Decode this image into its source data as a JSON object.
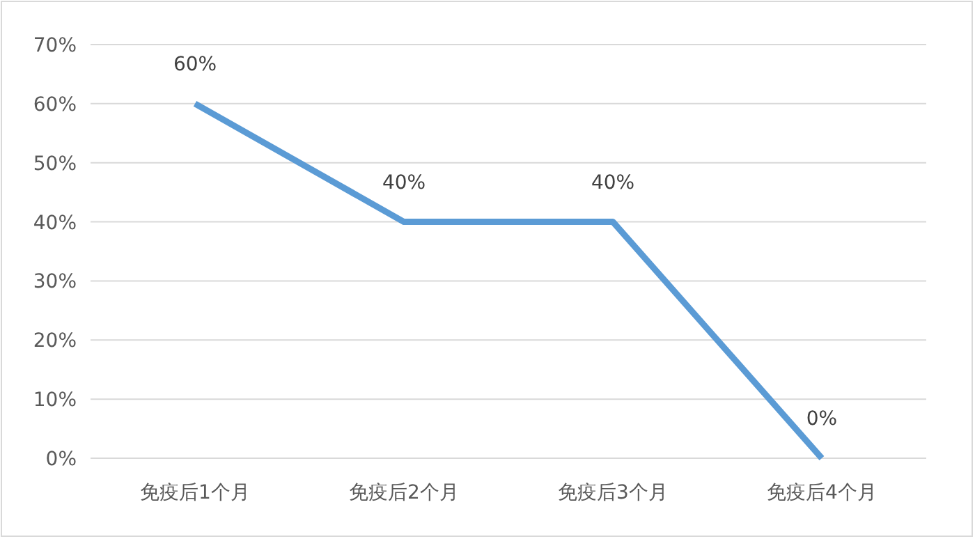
{
  "chart_data": {
    "type": "line",
    "categories": [
      "免疫后1个月",
      "免疫后2个月",
      "免疫后3个月",
      "免疫后4个月"
    ],
    "series": [
      {
        "color": "#5b9bd5",
        "values": [
          60,
          40,
          40,
          0
        ],
        "value_labels": [
          "60%",
          "40%",
          "40%",
          "0%"
        ]
      }
    ],
    "ylim": [
      0,
      70
    ],
    "yticks": [
      {
        "value": 0,
        "label": "0%"
      },
      {
        "value": 10,
        "label": "10%"
      },
      {
        "value": 20,
        "label": "20%"
      },
      {
        "value": 30,
        "label": "30%"
      },
      {
        "value": 40,
        "label": "40%"
      },
      {
        "value": 50,
        "label": "50%"
      },
      {
        "value": 60,
        "label": "60%"
      },
      {
        "value": 70,
        "label": "70%"
      }
    ],
    "grid": "y"
  }
}
